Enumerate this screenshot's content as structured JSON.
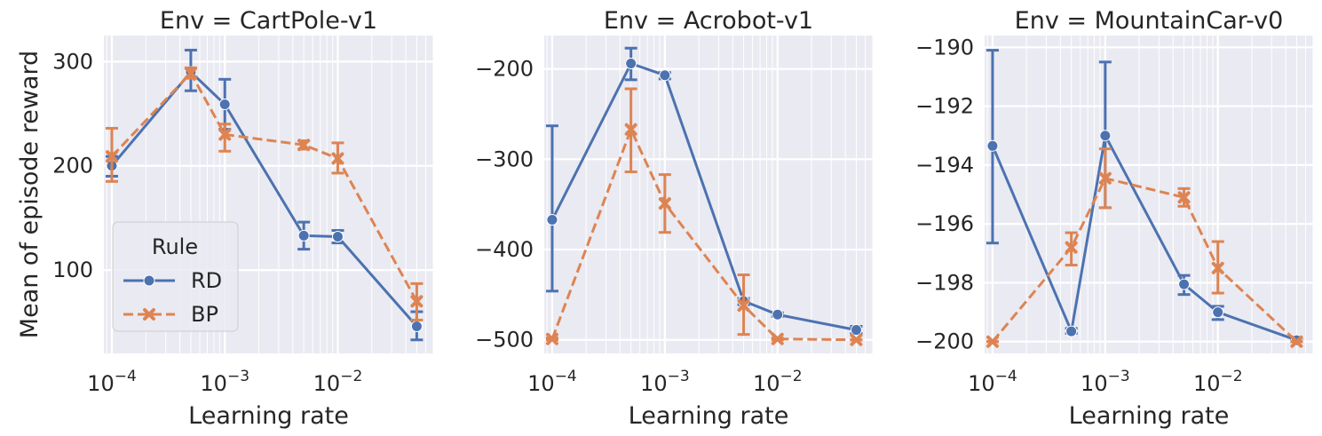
{
  "chart_data": [
    {
      "type": "line",
      "title": "Env = CartPole-v1",
      "xlabel": "Learning rate",
      "ylabel": "Mean of episode reward",
      "xscale": "log",
      "xlim": [
        8.5e-05,
        0.07
      ],
      "ylim": [
        20,
        325
      ],
      "yticks": [
        100,
        200,
        300
      ],
      "xtick_labels": [
        [
          "10",
          "−4"
        ],
        [
          "10",
          "−3"
        ],
        [
          "10",
          "−2"
        ]
      ],
      "grid": true,
      "legend": {
        "title": "Rule",
        "placement": "lower-left",
        "entries": [
          "RD",
          "BP"
        ]
      },
      "series": [
        {
          "name": "RD",
          "x": [
            0.0001,
            0.0005,
            0.001,
            0.005,
            0.01,
            0.05
          ],
          "y": [
            200,
            290,
            259,
            133,
            132,
            46
          ],
          "lo": [
            190,
            272,
            235,
            120,
            126,
            33
          ],
          "hi": [
            209,
            311,
            283,
            146,
            138,
            60
          ]
        },
        {
          "name": "BP",
          "x": [
            0.0001,
            0.0005,
            0.001,
            0.005,
            0.01,
            0.05
          ],
          "y": [
            209,
            289,
            230,
            220,
            207,
            70
          ],
          "lo": [
            185,
            284,
            214,
            216,
            193,
            52
          ],
          "hi": [
            236,
            294,
            240,
            224,
            222,
            87
          ]
        }
      ]
    },
    {
      "type": "line",
      "title": "Env = Acrobot-v1",
      "xlabel": "Learning rate",
      "ylabel": "",
      "xscale": "log",
      "xlim": [
        8.5e-05,
        0.07
      ],
      "ylim": [
        -515,
        -163
      ],
      "yticks": [
        -500,
        -400,
        -300,
        -200
      ],
      "ytick_labels": [
        "−500",
        "−400",
        "−300",
        "−200"
      ],
      "xtick_labels": [
        [
          "10",
          "−4"
        ],
        [
          "10",
          "−3"
        ],
        [
          "10",
          "−2"
        ]
      ],
      "grid": true,
      "series": [
        {
          "name": "RD",
          "x": [
            0.0001,
            0.0005,
            0.001,
            0.005,
            0.01,
            0.05
          ],
          "y": [
            -367,
            -194,
            -207,
            -457,
            -472,
            -489
          ],
          "lo": [
            -446,
            -212,
            -211,
            -461,
            -474,
            -493
          ],
          "hi": [
            -263,
            -177,
            -204,
            -454,
            -470,
            -485
          ]
        },
        {
          "name": "BP",
          "x": [
            0.0001,
            0.0005,
            0.001,
            0.005,
            0.01,
            0.05
          ],
          "y": [
            -499,
            -267,
            -349,
            -462,
            -499,
            -500
          ],
          "lo": [
            -500,
            -314,
            -381,
            -494,
            -500,
            -500
          ],
          "hi": [
            -498,
            -222,
            -317,
            -428,
            -498,
            -500
          ]
        }
      ]
    },
    {
      "type": "line",
      "title": "Env = MountainCar-v0",
      "xlabel": "Learning rate",
      "ylabel": "",
      "xscale": "log",
      "xlim": [
        8.5e-05,
        0.07
      ],
      "ylim": [
        -200.4,
        -189.6
      ],
      "yticks": [
        -200,
        -198,
        -196,
        -194,
        -192,
        -190
      ],
      "ytick_labels": [
        "−200",
        "−198",
        "−196",
        "−194",
        "−192",
        "−190"
      ],
      "xtick_labels": [
        [
          "10",
          "−4"
        ],
        [
          "10",
          "−3"
        ],
        [
          "10",
          "−2"
        ]
      ],
      "grid": true,
      "series": [
        {
          "name": "RD",
          "x": [
            0.0001,
            0.0005,
            0.001,
            0.005,
            0.01,
            0.05
          ],
          "y": [
            -193.35,
            -199.65,
            -193.0,
            -198.05,
            -199.0,
            -199.95
          ],
          "lo": [
            -196.65,
            -199.72,
            -195.45,
            -198.4,
            -199.25,
            -200.0
          ],
          "hi": [
            -190.1,
            -199.55,
            -190.5,
            -197.75,
            -198.8,
            -199.9
          ]
        },
        {
          "name": "BP",
          "x": [
            0.0001,
            0.0005,
            0.001,
            0.005,
            0.01,
            0.05
          ],
          "y": [
            -200.0,
            -196.8,
            -194.45,
            -195.1,
            -197.5,
            -200.0
          ],
          "lo": [
            -200.0,
            -197.4,
            -195.45,
            -195.4,
            -198.35,
            -200.0
          ],
          "hi": [
            -200.0,
            -196.3,
            -193.45,
            -194.8,
            -196.6,
            -200.0
          ]
        }
      ]
    }
  ],
  "colors": {
    "RD": "#4c72b0",
    "BP": "#dd8452",
    "background": "#eaeaf2",
    "grid": "#ffffff"
  }
}
